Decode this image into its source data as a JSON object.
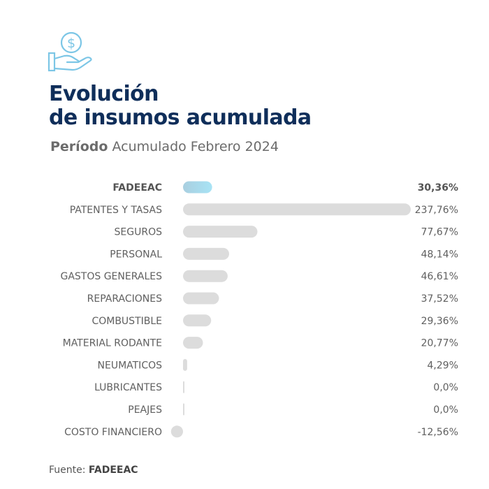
{
  "header": {
    "title_line1": "Evolución",
    "title_line2": "de insumos acumulada",
    "period_label": "Período",
    "period_value": "Acumulado Febrero 2024"
  },
  "icon": {
    "name": "money-hand-icon",
    "color": "#7cc6e6"
  },
  "chart_data": {
    "type": "bar",
    "orientation": "horizontal",
    "categories": [
      "FADEEAC",
      "PATENTES Y TASAS",
      "SEGUROS",
      "PERSONAL",
      "GASTOS GENERALES",
      "REPARACIONES",
      "COMBUSTIBLE",
      "MATERIAL RODANTE",
      "NEUMATICOS",
      "LUBRICANTES",
      "PEAJES",
      "COSTO FINANCIERO"
    ],
    "values": [
      30.36,
      237.76,
      77.67,
      48.14,
      46.61,
      37.52,
      29.36,
      20.77,
      4.29,
      0.0,
      0.0,
      -12.56
    ],
    "value_labels": [
      "30,36%",
      "237,76%",
      "77,67%",
      "48,14%",
      "46,61%",
      "37,52%",
      "29,36%",
      "20,77%",
      "4,29%",
      "0,0%",
      "0,0%",
      "-12,56%"
    ],
    "highlight_index": 0,
    "colors": {
      "bar": "#dcdcdc",
      "highlight_start": "#a9cfe0",
      "highlight_end": "#a8e3f5",
      "label": "#5f5f5f",
      "label_highlight": "#555555"
    }
  },
  "footer": {
    "source_label": "Fuente:",
    "source_value": "FADEEAC"
  }
}
